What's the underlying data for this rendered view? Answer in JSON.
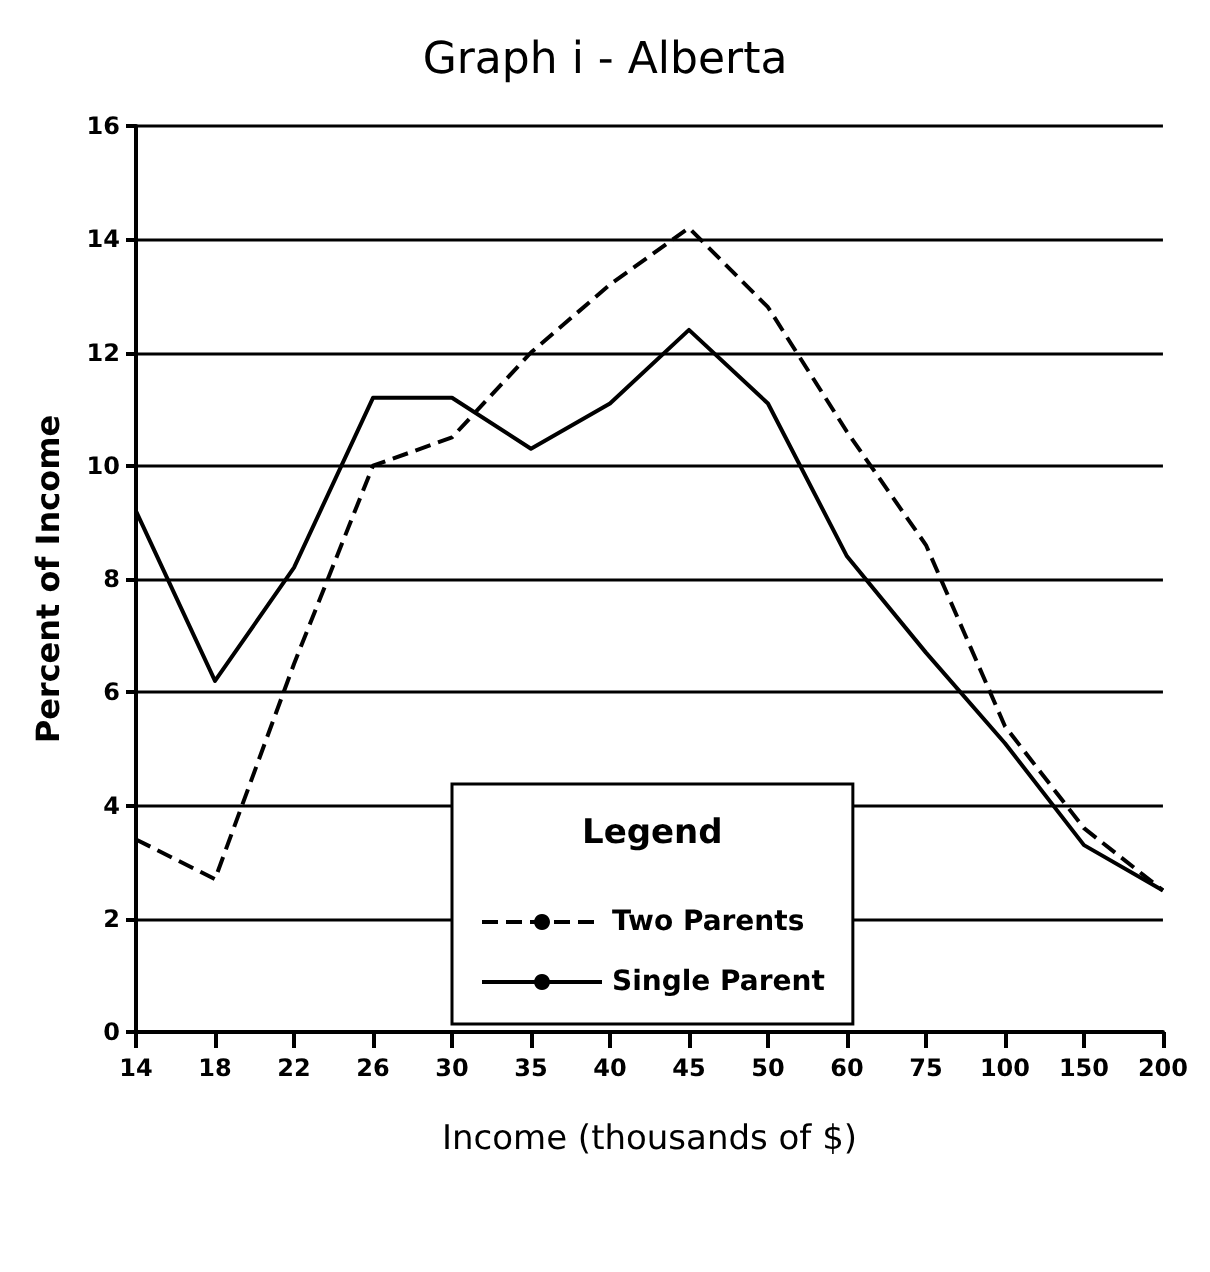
{
  "chart_data": {
    "type": "line",
    "title": "Graph i - Alberta",
    "xlabel": "Income (thousands of $)",
    "ylabel": "Percent of Income",
    "categories": [
      "14",
      "18",
      "22",
      "26",
      "30",
      "35",
      "40",
      "45",
      "50",
      "60",
      "75",
      "100",
      "150",
      "200"
    ],
    "series": [
      {
        "name": "Two Parents",
        "color": "#000000",
        "line_style": "dashed",
        "values": [
          3.4,
          2.7,
          6.5,
          10.0,
          10.5,
          12.0,
          13.2,
          14.2,
          12.8,
          10.6,
          8.6,
          5.4,
          3.6,
          2.5
        ]
      },
      {
        "name": "Single Parent",
        "color": "#000000",
        "line_style": "solid",
        "values": [
          9.2,
          6.2,
          8.2,
          11.2,
          11.2,
          10.3,
          11.1,
          12.4,
          11.1,
          8.4,
          6.7,
          5.1,
          3.3,
          2.5
        ]
      }
    ],
    "ylim": [
      0,
      16
    ],
    "yticks": [
      0,
      2,
      4,
      6,
      8,
      10,
      12,
      14,
      16
    ],
    "grid": "y",
    "legend": "bottom",
    "legend_title": "Legend",
    "marker": "none"
  }
}
